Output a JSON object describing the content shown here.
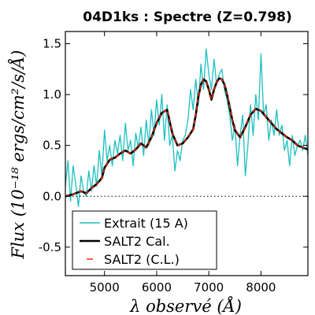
{
  "chart_data": {
    "type": "line",
    "title": "04D1ks : Spectre (Z=0.798)",
    "xlabel": "λ observé (Å)",
    "ylabel": "Flux (10⁻¹⁸ ergs/cm²/s/Å)",
    "xlim": [
      4250,
      8900
    ],
    "ylim": [
      -0.78,
      1.62
    ],
    "xticks": [
      5000,
      6000,
      7000,
      8000
    ],
    "yticks": [
      -0.5,
      0.0,
      0.5,
      1.0,
      1.5
    ],
    "xtick_labels": [
      "5000",
      "6000",
      "7000",
      "8000"
    ],
    "ytick_labels": [
      "-0.5",
      "0.0",
      "0.5",
      "1.0",
      "1.5"
    ],
    "zero_line": true,
    "grid": false,
    "legend_position": "lower-left",
    "series": [
      {
        "name": "Extrait (15 A)",
        "color": "#1bbfbf",
        "x": [
          4250,
          4300,
          4350,
          4400,
          4450,
          4500,
          4550,
          4600,
          4650,
          4700,
          4750,
          4800,
          4850,
          4900,
          4950,
          5000,
          5050,
          5100,
          5150,
          5200,
          5250,
          5300,
          5350,
          5400,
          5450,
          5500,
          5550,
          5600,
          5650,
          5700,
          5750,
          5800,
          5850,
          5900,
          5950,
          6000,
          6050,
          6100,
          6150,
          6200,
          6250,
          6300,
          6350,
          6400,
          6450,
          6500,
          6550,
          6600,
          6650,
          6700,
          6750,
          6800,
          6850,
          6900,
          6950,
          7000,
          7050,
          7100,
          7150,
          7200,
          7250,
          7300,
          7350,
          7400,
          7450,
          7500,
          7550,
          7600,
          7650,
          7700,
          7750,
          7800,
          7850,
          7900,
          7950,
          8000,
          8050,
          8100,
          8150,
          8200,
          8250,
          8300,
          8350,
          8400,
          8450,
          8500,
          8550,
          8600,
          8650,
          8700,
          8750,
          8800,
          8850,
          8900
        ],
        "values": [
          0.1,
          0.35,
          -0.05,
          0.3,
          0.12,
          -0.1,
          0.2,
          0.05,
          0.0,
          0.25,
          0.05,
          0.3,
          0.1,
          0.45,
          0.2,
          0.65,
          0.35,
          0.5,
          0.3,
          0.55,
          0.42,
          0.6,
          0.35,
          0.72,
          0.45,
          0.55,
          0.3,
          0.62,
          0.48,
          0.68,
          0.4,
          0.75,
          0.5,
          0.85,
          0.6,
          0.95,
          0.7,
          1.0,
          0.55,
          0.9,
          0.5,
          0.6,
          0.25,
          0.45,
          0.35,
          0.55,
          0.6,
          0.75,
          1.05,
          0.85,
          1.15,
          0.9,
          1.3,
          1.05,
          1.45,
          1.2,
          1.05,
          1.35,
          1.1,
          1.2,
          1.25,
          1.05,
          0.95,
          0.8,
          0.55,
          0.7,
          0.3,
          0.6,
          0.8,
          0.2,
          0.5,
          0.9,
          0.6,
          1.0,
          0.75,
          1.4,
          0.8,
          0.9,
          0.55,
          0.75,
          0.6,
          0.85,
          0.6,
          0.7,
          0.45,
          0.55,
          0.3,
          0.6,
          0.4,
          0.5,
          0.55,
          0.45,
          0.6,
          0.4
        ]
      },
      {
        "name": "SALT2 Cal.",
        "color": "#000000",
        "x": [
          4250,
          4400,
          4550,
          4650,
          4750,
          4850,
          4950,
          5000,
          5050,
          5100,
          5200,
          5300,
          5400,
          5500,
          5600,
          5700,
          5800,
          5900,
          6000,
          6100,
          6200,
          6300,
          6400,
          6500,
          6600,
          6700,
          6750,
          6800,
          6850,
          6900,
          6950,
          7000,
          7050,
          7100,
          7150,
          7200,
          7250,
          7300,
          7350,
          7400,
          7450,
          7500,
          7600,
          7700,
          7800,
          7900,
          8000,
          8100,
          8200,
          8300,
          8400,
          8500,
          8600,
          8700,
          8800,
          8900
        ],
        "values": [
          0.0,
          0.02,
          0.05,
          0.03,
          0.08,
          0.12,
          0.18,
          0.28,
          0.32,
          0.36,
          0.38,
          0.42,
          0.45,
          0.42,
          0.46,
          0.52,
          0.48,
          0.58,
          0.72,
          0.82,
          0.85,
          0.62,
          0.5,
          0.52,
          0.58,
          0.66,
          0.8,
          0.98,
          1.1,
          1.15,
          1.13,
          1.05,
          0.95,
          1.05,
          1.12,
          1.16,
          1.15,
          1.1,
          1.0,
          0.88,
          0.75,
          0.65,
          0.58,
          0.68,
          0.8,
          0.86,
          0.84,
          0.78,
          0.72,
          0.66,
          0.62,
          0.58,
          0.55,
          0.5,
          0.48,
          0.46
        ]
      },
      {
        "name": "SALT2 (C.L.)",
        "color": "#ff2a00",
        "x": [
          4250,
          4400,
          4550,
          4650,
          4750,
          4850,
          4950,
          5000,
          5050,
          5100,
          5200,
          5300,
          5400,
          5500,
          5600,
          5700,
          5800,
          5900,
          6000,
          6100,
          6200,
          6300,
          6400,
          6500,
          6600,
          6700,
          6750,
          6800,
          6850,
          6900,
          6950,
          7000,
          7050,
          7100,
          7150,
          7200,
          7250,
          7300,
          7350,
          7400,
          7450,
          7500,
          7600,
          7700,
          7800,
          7900,
          8000,
          8100,
          8200,
          8300,
          8400,
          8500,
          8600,
          8700,
          8800,
          8900
        ],
        "values": [
          0.0,
          0.02,
          0.05,
          0.03,
          0.08,
          0.12,
          0.18,
          0.28,
          0.32,
          0.36,
          0.38,
          0.42,
          0.45,
          0.42,
          0.46,
          0.52,
          0.48,
          0.58,
          0.72,
          0.82,
          0.85,
          0.62,
          0.5,
          0.52,
          0.58,
          0.66,
          0.8,
          0.98,
          1.1,
          1.15,
          1.13,
          1.05,
          0.95,
          1.05,
          1.12,
          1.16,
          1.15,
          1.1,
          1.0,
          0.88,
          0.75,
          0.65,
          0.58,
          0.68,
          0.8,
          0.86,
          0.84,
          0.78,
          0.72,
          0.66,
          0.62,
          0.58,
          0.55,
          0.5,
          0.48,
          0.46
        ]
      }
    ]
  }
}
